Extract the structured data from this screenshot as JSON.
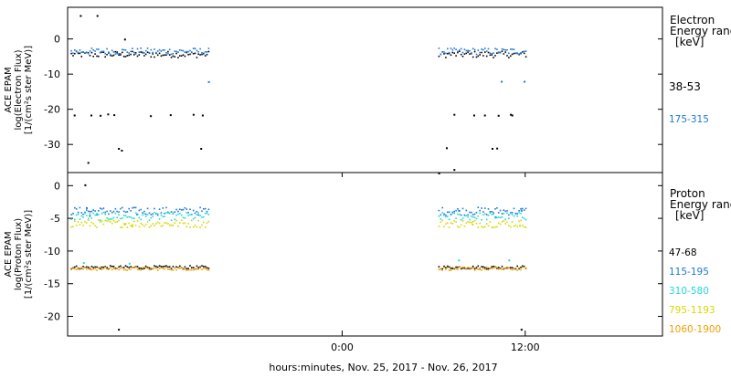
{
  "chart_data": [
    {
      "type": "scatter",
      "panel": "electron",
      "ylabel_lines": [
        "ACE EPAM",
        "log(Electron Flux)",
        "[1/(cm²s ster MeV)]"
      ],
      "ylim": [
        -38,
        9
      ],
      "yticks": [
        0,
        -10,
        -20,
        -30
      ],
      "legend_lines": [
        "Electron",
        "Energy ranges",
        "[keV]"
      ],
      "legend_placement": "right",
      "series": [
        {
          "name": "38-53",
          "color": "#000000",
          "band_level": -4.2,
          "points": [
            [
              -17.2,
              6.8
            ],
            [
              -16.1,
              6.8
            ],
            [
              -14.3,
              0.1
            ],
            [
              -17.6,
              -21.5
            ],
            [
              -16.5,
              -21.5
            ],
            [
              -15.9,
              -21.6
            ],
            [
              -15.4,
              -21.2
            ],
            [
              -15.0,
              -21.4
            ],
            [
              -12.6,
              -21.7
            ],
            [
              -11.3,
              -21.4
            ],
            [
              -9.8,
              -21.3
            ],
            [
              -9.2,
              -21.5
            ],
            [
              -16.7,
              -35.0
            ],
            [
              -14.7,
              -31.0
            ],
            [
              -14.5,
              -31.5
            ],
            [
              -9.3,
              -31.0
            ],
            [
              6.3,
              -38.0
            ],
            [
              6.8,
              -30.8
            ],
            [
              7.3,
              -37.0
            ],
            [
              7.3,
              -21.3
            ],
            [
              8.6,
              -21.5
            ],
            [
              9.3,
              -21.5
            ],
            [
              10.2,
              -21.6
            ],
            [
              11.0,
              -21.3
            ],
            [
              11.1,
              -21.5
            ],
            [
              9.8,
              -31.0
            ],
            [
              10.1,
              -30.9
            ]
          ]
        },
        {
          "name": "175-315",
          "color": "#1f78d4",
          "band_level": -3.3,
          "points": [
            [
              -8.8,
              -12.0
            ],
            [
              10.4,
              -11.9
            ],
            [
              11.9,
              -11.9
            ]
          ]
        }
      ]
    },
    {
      "type": "scatter",
      "panel": "proton",
      "ylabel_lines": [
        "ACE EPAM",
        "log(Proton Flux)",
        "[1/(cm²s ster MeV)]"
      ],
      "ylim": [
        -23,
        2
      ],
      "yticks": [
        0,
        -5,
        -10,
        -15,
        -20
      ],
      "xticks": [
        "0:00",
        "12:00"
      ],
      "xlabel": "hours:minutes, Nov. 25, 2017 - Nov. 26, 2017",
      "legend_lines": [
        "Proton",
        "Energy ranges",
        "[keV]"
      ],
      "legend_placement": "right",
      "series": [
        {
          "name": "47-68",
          "color": "#000000",
          "band_level": -12.4,
          "points": [
            [
              -16.9,
              0.2
            ],
            [
              -14.7,
              -21.9
            ],
            [
              11.7,
              -21.9
            ]
          ]
        },
        {
          "name": "115-195",
          "color": "#1f78d4",
          "band_level": -3.8,
          "points": [
            [
              -16.8,
              -3.3
            ],
            [
              -16.6,
              -4.5
            ],
            [
              -13.5,
              -4.3
            ],
            [
              7.6,
              -3.7
            ],
            [
              10.0,
              -4.7
            ],
            [
              11.7,
              -3.7
            ]
          ]
        },
        {
          "name": "310-580",
          "color": "#22d8d8",
          "band_level": -4.6,
          "points": [
            [
              -17.0,
              -11.7
            ],
            [
              -14.0,
              -11.8
            ],
            [
              7.6,
              -11.3
            ],
            [
              10.9,
              -11.3
            ]
          ]
        },
        {
          "name": "795-1193",
          "color": "#d7d800",
          "band_level": -5.7,
          "points": [
            [
              -14.3,
              -5.8
            ],
            [
              -13.8,
              -5.9
            ],
            [
              8.5,
              -5.8
            ],
            [
              11.6,
              -6.0
            ]
          ]
        },
        {
          "name": "1060-1900",
          "color": "#f0a000",
          "band_level": -12.6,
          "points": []
        }
      ]
    }
  ]
}
